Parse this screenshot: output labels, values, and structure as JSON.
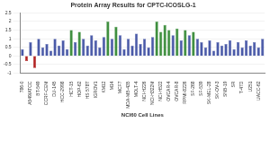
{
  "chart_data": {
    "type": "bar",
    "title": "Protein Array Results for CPTC-ICOSLG-1",
    "x_label": "NCI60 Cell Lines",
    "categories": [
      "786-0",
      null,
      "A549/ATCC",
      null,
      "BT-549",
      null,
      "CCRF-CEM",
      null,
      "DU-145",
      null,
      "HCC-2998",
      null,
      "HCT-15",
      null,
      "HOP-62",
      null,
      "HS 578T",
      null,
      "IGROV1",
      null,
      "KM12",
      null,
      "M14",
      null,
      "MCF7",
      null,
      "MDA-MB-435",
      null,
      "MOLT-4",
      null,
      "NCI-H226",
      null,
      "NCI-H322M",
      null,
      "NCI-H522",
      null,
      "OVCAR-4",
      null,
      "OVCAR-8",
      null,
      "RPMI-8226",
      null,
      "SF-268",
      null,
      "SF-539",
      null,
      "SK-MEL-28",
      null,
      "SK-OV-3",
      null,
      "SNB-19",
      null,
      "SR",
      null,
      "T-47D",
      null,
      "U251",
      null,
      "UACC-62",
      null
    ],
    "values": [
      0.4,
      -0.3,
      0.8,
      -0.7,
      1.0,
      0.5,
      0.7,
      0.3,
      1.0,
      0.6,
      0.9,
      0.4,
      1.5,
      0.8,
      1.4,
      1.0,
      0.6,
      1.2,
      0.9,
      0.5,
      1.1,
      2.0,
      1.0,
      1.7,
      1.2,
      0.4,
      1.0,
      0.6,
      1.3,
      0.7,
      1.0,
      0.5,
      1.1,
      2.0,
      1.4,
      1.8,
      1.5,
      1.2,
      1.6,
      0.9,
      1.5,
      1.2,
      1.4,
      1.0,
      0.8,
      0.5,
      0.9,
      0.3,
      0.8,
      0.6,
      0.7,
      0.9,
      0.4,
      0.8,
      0.5,
      0.9,
      0.6,
      0.8,
      0.5,
      1.0
    ],
    "colors": [
      "#4a5aa8",
      "#b22222",
      "#4a5aa8",
      "#b22222",
      "#4a5aa8",
      "#4a5aa8",
      "#4a5aa8",
      "#4a5aa8",
      "#4a5aa8",
      "#4a5aa8",
      "#4a5aa8",
      "#4a5aa8",
      "#3f8f3f",
      "#4a5aa8",
      "#3f8f3f",
      "#4a5aa8",
      "#4a5aa8",
      "#4a5aa8",
      "#4a5aa8",
      "#4a5aa8",
      "#4a5aa8",
      "#3f8f3f",
      "#4a5aa8",
      "#3f8f3f",
      "#4a5aa8",
      "#4a5aa8",
      "#4a5aa8",
      "#4a5aa8",
      "#4a5aa8",
      "#4a5aa8",
      "#4a5aa8",
      "#4a5aa8",
      "#4a5aa8",
      "#3f8f3f",
      "#3f8f3f",
      "#3f8f3f",
      "#3f8f3f",
      "#4a5aa8",
      "#3f8f3f",
      "#4a5aa8",
      "#3f8f3f",
      "#4a5aa8",
      "#3f8f3f",
      "#4a5aa8",
      "#4a5aa8",
      "#4a5aa8",
      "#4a5aa8",
      "#4a5aa8",
      "#4a5aa8",
      "#4a5aa8",
      "#4a5aa8",
      "#4a5aa8",
      "#4a5aa8",
      "#4a5aa8",
      "#4a5aa8",
      "#4a5aa8",
      "#4a5aa8",
      "#4a5aa8",
      "#4a5aa8",
      "#4a5aa8"
    ],
    "ylim": [
      -1,
      2.5
    ],
    "yticks": [
      -1,
      -0.5,
      0,
      0.5,
      1,
      1.5,
      2,
      2.5
    ],
    "grid": true
  }
}
